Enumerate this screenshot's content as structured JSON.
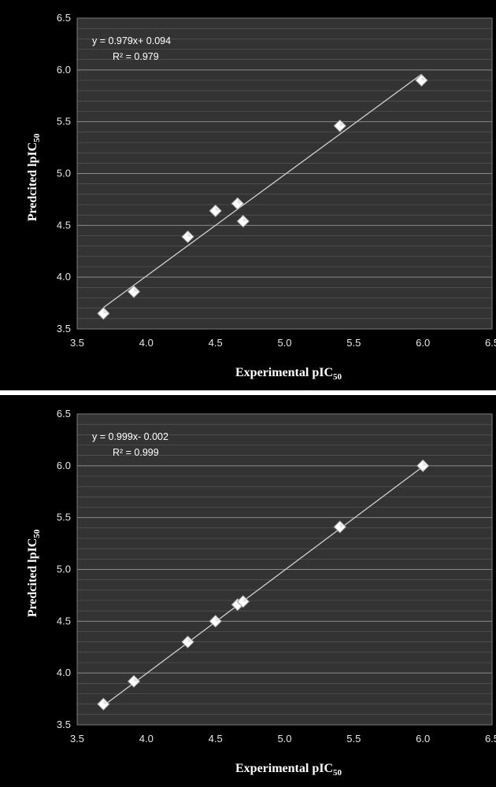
{
  "chart_data": [
    {
      "type": "scatter",
      "title": "",
      "xlabel": "Experimental pIC50",
      "ylabel": "Predcited lpIC50",
      "xlabel_main": "Experimental pIC",
      "ylabel_main": "Predcited lpIC",
      "label_subscript": "50",
      "xlim": [
        3.5,
        6.5
      ],
      "ylim": [
        3.5,
        6.5
      ],
      "x_ticks": [
        "3.5",
        "4.0",
        "4.5",
        "5.0",
        "5.5",
        "6.0",
        "6.5"
      ],
      "y_ticks": [
        "3.5",
        "4.0",
        "4.5",
        "5.0",
        "5.5",
        "6.0",
        "6.5"
      ],
      "grid": true,
      "equation": "y = 0.979x+ 0.094",
      "r2": "R² = 0.979",
      "trendline": {
        "slope": 0.979,
        "intercept": 0.094
      },
      "points": [
        {
          "x": 3.69,
          "y": 3.65
        },
        {
          "x": 3.91,
          "y": 3.86
        },
        {
          "x": 4.3,
          "y": 4.39
        },
        {
          "x": 4.5,
          "y": 4.64
        },
        {
          "x": 4.66,
          "y": 4.71
        },
        {
          "x": 4.7,
          "y": 4.54
        },
        {
          "x": 5.4,
          "y": 5.46
        },
        {
          "x": 5.99,
          "y": 5.9
        }
      ],
      "colors": {
        "background": "#333333",
        "marker": "#ffffff",
        "trendline": "#cfcfcf",
        "grid": "#5e5e5e"
      }
    },
    {
      "type": "scatter",
      "title": "",
      "xlabel": "Experimental pIC50",
      "ylabel": "Predcited lpIC50",
      "xlabel_main": "Experimental pIC",
      "ylabel_main": "Predcited lpIC",
      "label_subscript": "50",
      "xlim": [
        3.5,
        6.5
      ],
      "ylim": [
        3.5,
        6.5
      ],
      "x_ticks": [
        "3.5",
        "4.0",
        "4.5",
        "5.0",
        "5.5",
        "6.0",
        "6.5"
      ],
      "y_ticks": [
        "3.5",
        "4.0",
        "4.5",
        "5.0",
        "5.5",
        "6.0",
        "6.5"
      ],
      "grid": true,
      "equation": "y = 0.999x- 0.002",
      "r2": "R² = 0.999",
      "trendline": {
        "slope": 0.999,
        "intercept": -0.002
      },
      "points": [
        {
          "x": 3.69,
          "y": 3.7
        },
        {
          "x": 3.91,
          "y": 3.92
        },
        {
          "x": 4.3,
          "y": 4.3
        },
        {
          "x": 4.5,
          "y": 4.5
        },
        {
          "x": 4.66,
          "y": 4.66
        },
        {
          "x": 4.7,
          "y": 4.69
        },
        {
          "x": 5.4,
          "y": 5.41
        },
        {
          "x": 6.0,
          "y": 6.0
        }
      ],
      "colors": {
        "background": "#333333",
        "marker": "#ffffff",
        "trendline": "#cfcfcf",
        "grid": "#5e5e5e"
      }
    }
  ]
}
